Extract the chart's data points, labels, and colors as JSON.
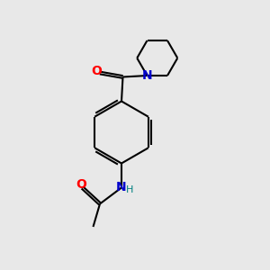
{
  "background_color": "#e8e8e8",
  "bond_color": "#000000",
  "atom_colors": {
    "O": "#ff0000",
    "N_pip": "#0000cc",
    "N_amide": "#0000cc",
    "H": "#008080"
  },
  "lw": 1.5,
  "font_size": 10,
  "font_size_H": 8
}
